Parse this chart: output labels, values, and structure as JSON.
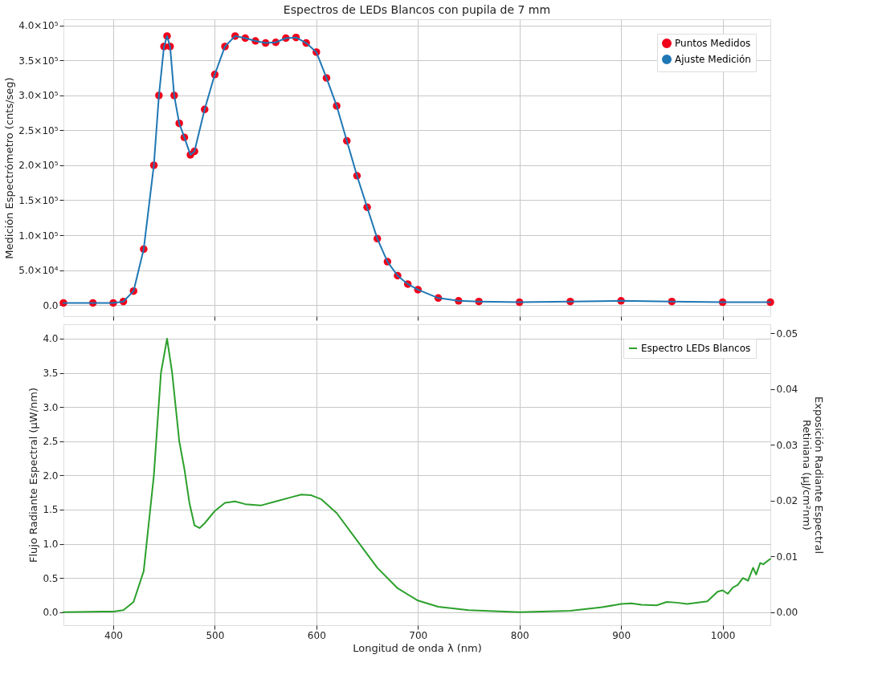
{
  "chart_data": [
    {
      "type": "scatter",
      "title": "Espectros de LEDs Blancos con pupila de 7 mm",
      "ylabel": "Medición Espectrómetro (cnts/seg)",
      "xlim": [
        351,
        1047
      ],
      "xticks": [
        400,
        500,
        600,
        700,
        800,
        900,
        1000
      ],
      "ylim": [
        -16000,
        409000
      ],
      "yticks": [
        {
          "value": 0,
          "label": "0.0"
        },
        {
          "value": 50000,
          "label": "5.0×10⁴"
        },
        {
          "value": 100000,
          "label": "1.0×10⁵"
        },
        {
          "value": 150000,
          "label": "1.5×10⁵"
        },
        {
          "value": 200000,
          "label": "2.0×10⁵"
        },
        {
          "value": 250000,
          "label": "2.5×10⁵"
        },
        {
          "value": 300000,
          "label": "3.0×10⁵"
        },
        {
          "value": 350000,
          "label": "3.5×10⁵"
        },
        {
          "value": 400000,
          "label": "4.0×10⁵"
        }
      ],
      "tick_labels": "y",
      "grid": true,
      "legend": "top right",
      "x": [
        351,
        380,
        400,
        410,
        420,
        430,
        440,
        445,
        450,
        453,
        456,
        460,
        465,
        470,
        476,
        480,
        490,
        500,
        510,
        520,
        530,
        540,
        550,
        560,
        570,
        580,
        590,
        600,
        610,
        620,
        630,
        640,
        650,
        660,
        670,
        680,
        690,
        700,
        720,
        740,
        760,
        800,
        850,
        900,
        950,
        1000,
        1047
      ],
      "series": [
        {
          "name": "Puntos Medidos",
          "type": "scatter",
          "color": "#f0001a",
          "values": [
            3000,
            3000,
            3000,
            5000,
            20000,
            80000,
            200000,
            300000,
            370000,
            385000,
            370000,
            300000,
            260000,
            240000,
            215000,
            220000,
            280000,
            330000,
            370000,
            385000,
            382000,
            378000,
            375000,
            376000,
            382000,
            383000,
            375000,
            362000,
            325000,
            285000,
            235000,
            185000,
            140000,
            95000,
            62000,
            42000,
            30000,
            22000,
            10000,
            6000,
            5000,
            4000,
            5000,
            6000,
            5000,
            4000,
            4000
          ]
        },
        {
          "name": "Ajuste Medición",
          "type": "line",
          "color": "#1f77b4",
          "values": [
            3000,
            3000,
            3000,
            5000,
            20000,
            80000,
            200000,
            300000,
            370000,
            385000,
            370000,
            300000,
            260000,
            240000,
            215000,
            220000,
            280000,
            330000,
            370000,
            385000,
            382000,
            378000,
            375000,
            376000,
            382000,
            383000,
            375000,
            362000,
            325000,
            285000,
            235000,
            185000,
            140000,
            95000,
            62000,
            42000,
            30000,
            22000,
            10000,
            6000,
            5000,
            4000,
            5000,
            6000,
            5000,
            4000,
            4000
          ]
        }
      ]
    },
    {
      "type": "line",
      "xlabel": "Longitud de onda λ (nm)",
      "ylabel": "Flujo Radiante Espectral (μW/nm)",
      "y2label": "Exposición Radiante Espectral\nRetiniana (μJ/cm²nm)",
      "xlim": [
        351,
        1047
      ],
      "xticks": [
        400,
        500,
        600,
        700,
        800,
        900,
        1000
      ],
      "ylim": [
        -0.19,
        4.21
      ],
      "yticks": [
        {
          "value": 0,
          "label": "0.0"
        },
        0.5,
        {
          "value": 1,
          "label": "1.0"
        },
        1.5,
        {
          "value": 2,
          "label": "2.0"
        },
        2.5,
        {
          "value": 3,
          "label": "3.0"
        },
        3.5,
        {
          "value": 4,
          "label": "4.0"
        }
      ],
      "y2lim": [
        -0.0023,
        0.0516
      ],
      "y2ticks": [
        {
          "value": 0,
          "label": "0.00"
        },
        0.01,
        0.02,
        0.03,
        0.04,
        0.05
      ],
      "grid": true,
      "legend": "top right",
      "x": [
        351,
        390,
        400,
        410,
        420,
        430,
        440,
        447,
        453,
        458,
        465,
        470,
        475,
        480,
        485,
        490,
        500,
        510,
        520,
        530,
        545,
        560,
        575,
        585,
        595,
        605,
        620,
        640,
        660,
        680,
        700,
        720,
        750,
        800,
        850,
        880,
        900,
        910,
        920,
        935,
        945,
        955,
        965,
        985,
        995,
        1000,
        1005,
        1010,
        1015,
        1020,
        1025,
        1030,
        1033,
        1037,
        1040,
        1047
      ],
      "series": [
        {
          "name": "Espectro LEDs Blancos",
          "color": "#2ca02c",
          "values": [
            0,
            0.01,
            0.01,
            0.03,
            0.15,
            0.6,
            2.0,
            3.5,
            4.0,
            3.5,
            2.5,
            2.1,
            1.6,
            1.27,
            1.23,
            1.3,
            1.48,
            1.6,
            1.62,
            1.58,
            1.56,
            1.62,
            1.68,
            1.72,
            1.71,
            1.65,
            1.45,
            1.05,
            0.65,
            0.35,
            0.17,
            0.08,
            0.03,
            0.0,
            0.02,
            0.07,
            0.12,
            0.13,
            0.11,
            0.1,
            0.15,
            0.14,
            0.12,
            0.16,
            0.3,
            0.32,
            0.27,
            0.36,
            0.4,
            0.5,
            0.46,
            0.65,
            0.55,
            0.72,
            0.7,
            0.78
          ]
        }
      ]
    }
  ]
}
